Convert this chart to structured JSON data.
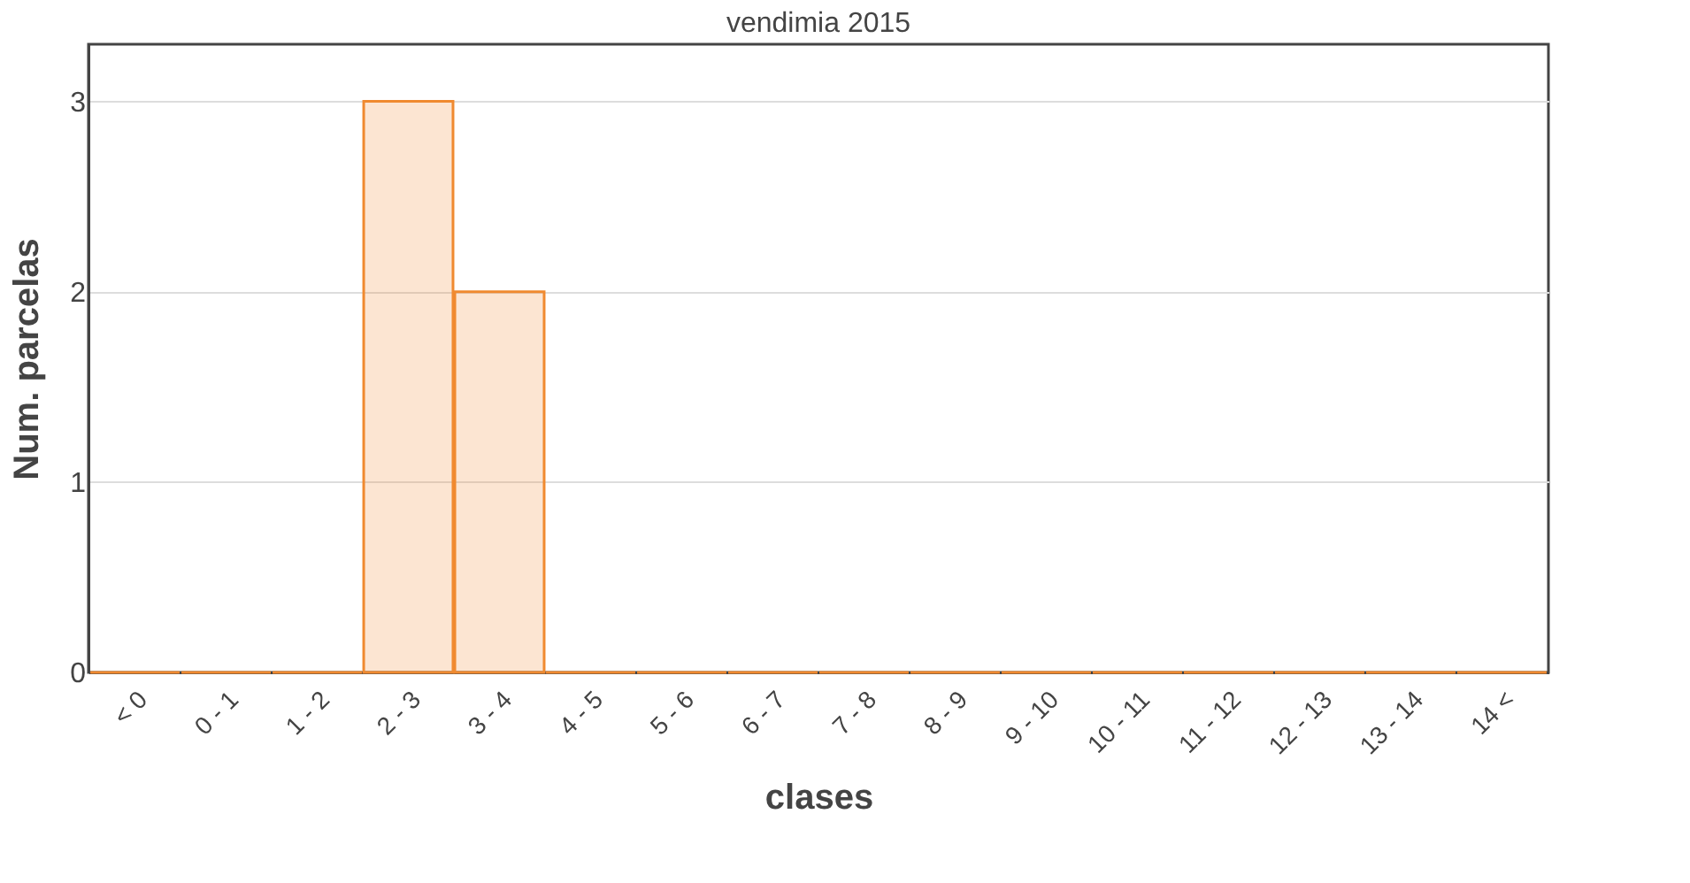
{
  "chart_data": {
    "type": "bar",
    "title": "vendimia 2015",
    "xlabel": "clases",
    "ylabel": "Num. parcelas",
    "categories": [
      "< 0",
      "0 - 1",
      "1 - 2",
      "2 - 3",
      "3 - 4",
      "4 - 5",
      "5 - 6",
      "6 - 7",
      "7 - 8",
      "8 - 9",
      "9 - 10",
      "10 - 11",
      "11 - 12",
      "12 - 13",
      "13 - 14",
      "14 <"
    ],
    "series": [
      {
        "color": "#f08a30",
        "values": [
          0,
          0,
          0,
          3,
          2,
          0,
          0,
          0,
          0,
          0,
          0,
          0,
          0,
          0,
          0,
          0
        ]
      }
    ],
    "ylim": [
      0,
      3.3
    ],
    "yticks": [
      0,
      1,
      2,
      3
    ],
    "grid": "y",
    "legend": false
  }
}
